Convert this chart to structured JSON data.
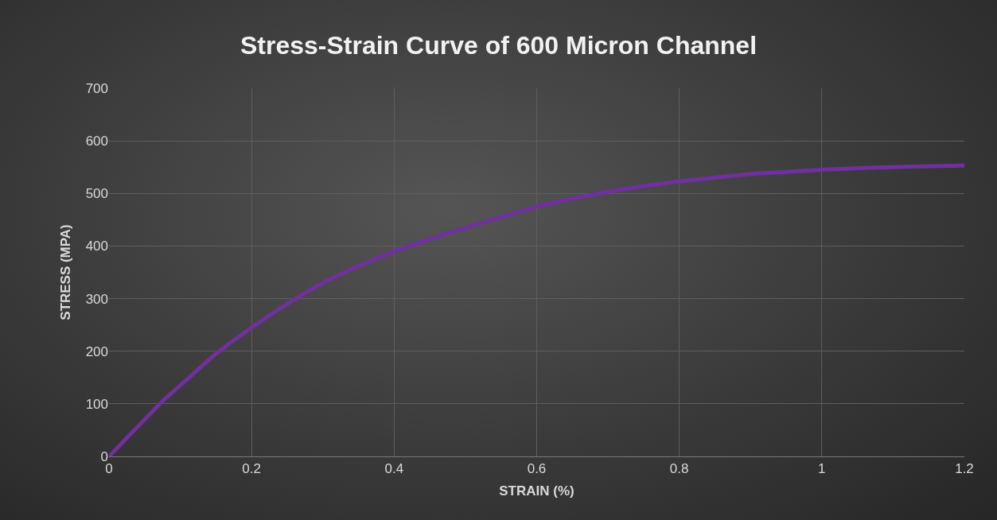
{
  "chart_data": {
    "type": "line",
    "title": "Stress-Strain Curve of 600 Micron Channel",
    "xlabel": "STRAIN (%)",
    "ylabel": "STRESS (MPA)",
    "x": [
      0,
      0.025,
      0.05,
      0.075,
      0.1,
      0.15,
      0.2,
      0.25,
      0.3,
      0.35,
      0.4,
      0.45,
      0.5,
      0.55,
      0.6,
      0.65,
      0.7,
      0.75,
      0.8,
      0.85,
      0.9,
      0.95,
      1.0,
      1.05,
      1.1,
      1.15,
      1.2
    ],
    "series": [
      {
        "color": "#7030a0",
        "values": [
          0,
          35,
          70,
          105,
          135,
          195,
          245,
          290,
          330,
          362,
          390,
          413,
          435,
          455,
          475,
          490,
          503,
          514,
          523,
          530,
          537,
          541,
          545,
          548,
          550,
          552,
          553
        ]
      }
    ],
    "xlim": [
      0,
      1.2
    ],
    "xticks": [
      0,
      0.2,
      0.4,
      0.6,
      0.8,
      1,
      1.2
    ],
    "ylim": [
      0,
      700
    ],
    "yticks": [
      0,
      100,
      200,
      300,
      400,
      500,
      600,
      700
    ],
    "grid": true,
    "marker": "none",
    "line_style": "solid"
  }
}
